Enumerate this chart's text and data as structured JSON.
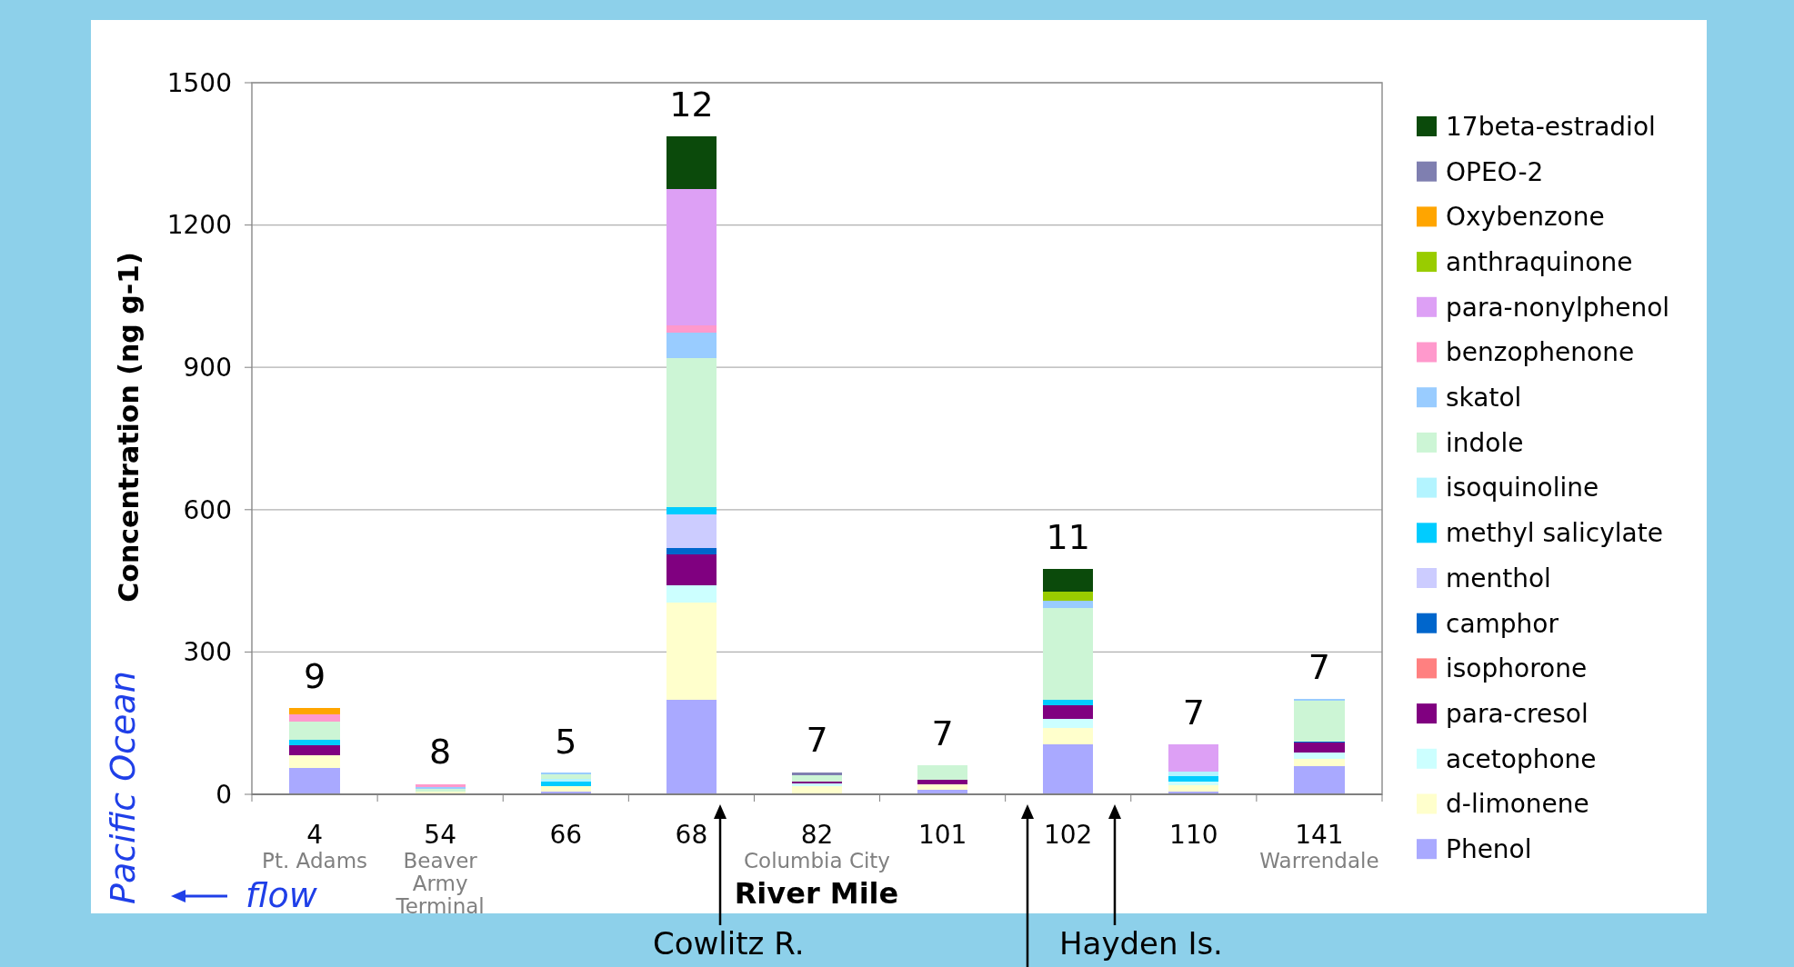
{
  "chart_data": {
    "type": "bar",
    "stacked": true,
    "ylabel": "Concentration (ng g-1)",
    "xlabel": "River Mile",
    "categories": [
      "4\nPt. Adams",
      "54\nBeaver\nArmy\nTerminal",
      "66",
      "68",
      "82\nColumbia City",
      "101",
      "102",
      "110",
      "141\nWarrendale"
    ],
    "series": [
      {
        "name": "Phenol",
        "color": "#a9a9ff",
        "values": [
          55,
          null,
          5,
          200,
          null,
          10,
          105,
          6,
          60
        ]
      },
      {
        "name": "d-limonene",
        "color": "#ffffcc",
        "values": [
          28,
          6,
          13,
          204,
          18,
          12,
          35,
          14,
          15
        ]
      },
      {
        "name": "acetophone",
        "color": "#ccffff",
        "values": [
          0,
          0,
          0,
          36,
          5,
          0,
          19,
          6,
          14
        ]
      },
      {
        "name": "para-cresol",
        "color": "#800080",
        "values": [
          21,
          0,
          0,
          66,
          3,
          8,
          28,
          0,
          21
        ]
      },
      {
        "name": "isophorone",
        "color": "#ff8080",
        "values": [
          0,
          0,
          0,
          0,
          0,
          0,
          0,
          0,
          0
        ]
      },
      {
        "name": "camphor",
        "color": "#0066cc",
        "values": [
          0,
          0,
          0,
          14,
          0,
          0,
          0,
          0,
          2
        ]
      },
      {
        "name": "menthol",
        "color": "#ccccff",
        "values": [
          0,
          0,
          0,
          70,
          0,
          0,
          0,
          0,
          0
        ]
      },
      {
        "name": "methyl salicylate",
        "color": "#00ccff",
        "values": [
          11,
          0,
          9,
          16,
          0,
          0,
          12,
          12,
          0
        ]
      },
      {
        "name": "isoquinoline",
        "color": "#b3f4ff",
        "values": [
          0,
          0,
          6,
          0,
          0,
          0,
          0,
          10,
          0
        ]
      },
      {
        "name": "indole",
        "color": "#ccf5d5",
        "values": [
          38,
          6,
          9,
          314,
          14,
          32,
          193,
          0,
          86
        ]
      },
      {
        "name": "skatol",
        "color": "#99ccff",
        "values": [
          0,
          4,
          4,
          53,
          0,
          0,
          16,
          0,
          3
        ]
      },
      {
        "name": "benzophenone",
        "color": "#ff99cc",
        "values": [
          16,
          5,
          0,
          16,
          0,
          0,
          0,
          0,
          0
        ]
      },
      {
        "name": "para-nonylphenol",
        "color": "#dda0f5",
        "values": [
          0,
          0,
          0,
          286,
          0,
          0,
          0,
          58,
          0
        ]
      },
      {
        "name": "anthraquinone",
        "color": "#99cc00",
        "values": [
          0,
          0,
          0,
          0,
          0,
          0,
          20,
          0,
          0
        ]
      },
      {
        "name": "Oxybenzone",
        "color": "#ffa500",
        "values": [
          13,
          0,
          0,
          0,
          0,
          0,
          0,
          0,
          0
        ]
      },
      {
        "name": "OPEO-2",
        "color": "#7f7fb0",
        "values": [
          0,
          0,
          0,
          0,
          6,
          0,
          0,
          0,
          0
        ]
      },
      {
        "name": "17beta-estradiol",
        "color": "#0b4a0b",
        "values": [
          0,
          0,
          0,
          112,
          0,
          0,
          48,
          0,
          0
        ]
      }
    ],
    "ylim": [
      0,
      1500
    ],
    "yticks": [
      0,
      300,
      600,
      900,
      1200,
      1500
    ],
    "grid": "y",
    "legend": "right",
    "annotations": [
      {
        "text": "9",
        "x": "4\nPt. Adams",
        "y": 182
      },
      {
        "text": "8",
        "x": "54\nBeaver\nArmy\nTerminal",
        "y": 23
      },
      {
        "text": "5",
        "x": "66",
        "y": 45
      },
      {
        "text": "12",
        "x": "68",
        "y": 1387
      },
      {
        "text": "7",
        "x": "82\nColumbia City",
        "y": 48
      },
      {
        "text": "7",
        "x": "101",
        "y": 62
      },
      {
        "text": "11",
        "x": "102",
        "y": 476
      },
      {
        "text": "7",
        "x": "110",
        "y": 106
      },
      {
        "text": "7",
        "x": "141\nWarrendale",
        "y": 201
      },
      "Pacific Ocean",
      "flow",
      "Cowlitz R.",
      "Hayden Is."
    ]
  }
}
